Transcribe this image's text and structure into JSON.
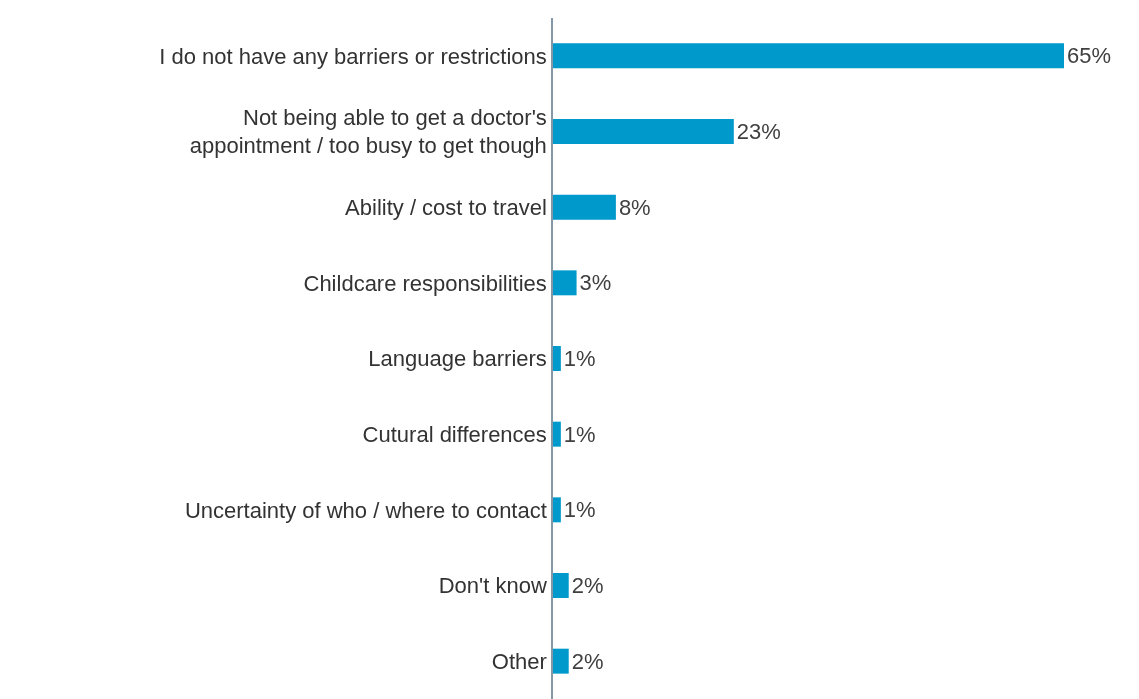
{
  "chart_data": {
    "type": "bar",
    "orientation": "horizontal",
    "categories": [
      "I do not have any barriers or restrictions",
      "Not being able to get a doctor's\nappointment / too busy to get though",
      "Ability / cost to travel",
      "Childcare responsibilities",
      "Language barriers",
      "Cutural differences",
      "Uncertainty of who / where to contact",
      "Don't know",
      "Other"
    ],
    "values": [
      65,
      23,
      8,
      3,
      1,
      1,
      1,
      2,
      2
    ],
    "value_labels": [
      "65%",
      "23%",
      "8%",
      "3%",
      "1%",
      "1%",
      "1%",
      "2%",
      "2%"
    ],
    "color": "#0099cc",
    "xlim": [
      0,
      65
    ],
    "tick_labels": "y",
    "legend": false
  }
}
